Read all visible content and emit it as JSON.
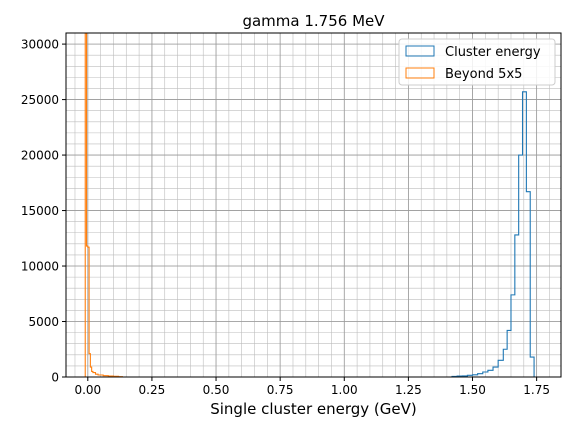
{
  "chart_data": {
    "type": "histogram",
    "title": "gamma 1.756 MeV",
    "xlabel": "Single cluster energy (GeV)",
    "ylabel": "",
    "xlim": [
      -0.085,
      1.845
    ],
    "ylim": [
      0,
      31000
    ],
    "xticks": [
      0.0,
      0.25,
      0.5,
      0.75,
      1.0,
      1.25,
      1.5,
      1.75
    ],
    "xtick_labels": [
      "0.00",
      "0.25",
      "0.50",
      "0.75",
      "1.00",
      "1.25",
      "1.50",
      "1.75"
    ],
    "yticks": [
      0,
      5000,
      10000,
      15000,
      20000,
      25000,
      30000
    ],
    "ytick_labels": [
      "0",
      "5000",
      "10000",
      "15000",
      "20000",
      "25000",
      "30000"
    ],
    "grid": "major-and-minor",
    "legend_position": "top-right",
    "series": [
      {
        "name": "Cluster energy",
        "color": "#1f77b4",
        "edges": [
          1.4,
          1.42,
          1.44,
          1.46,
          1.48,
          1.5,
          1.52,
          1.54,
          1.56,
          1.58,
          1.6,
          1.62,
          1.635,
          1.65,
          1.665,
          1.68,
          1.695,
          1.71,
          1.725,
          1.74,
          1.755
        ],
        "values": [
          0,
          50,
          80,
          100,
          150,
          200,
          300,
          450,
          600,
          900,
          1500,
          2500,
          4200,
          7400,
          12800,
          20000,
          25700,
          16700,
          1800,
          0
        ]
      },
      {
        "name": "Beyond 5x5",
        "color": "#ff7f0e",
        "edges": [
          -0.01,
          -0.005,
          0.0,
          0.005,
          0.01,
          0.015,
          0.02,
          0.03,
          0.04,
          0.06,
          0.08,
          0.1,
          0.12,
          0.135
        ],
        "values": [
          31000,
          11800,
          11700,
          2100,
          900,
          500,
          400,
          250,
          180,
          120,
          90,
          60,
          30
        ]
      }
    ]
  }
}
